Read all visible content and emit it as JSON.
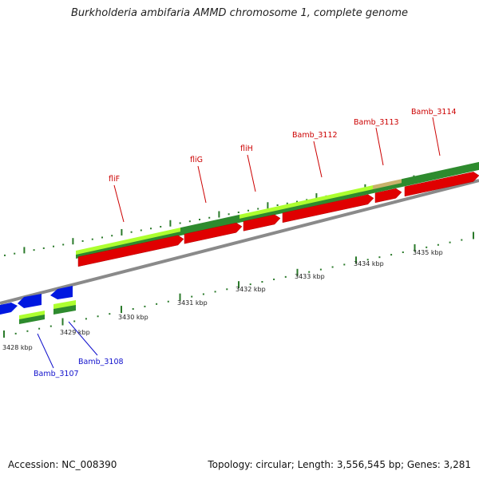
{
  "title": "Burkholderia ambifaria AMMD chromosome 1, complete genome",
  "colors": {
    "forward_cds": "#e00000",
    "reverse_cds": "#0018e0",
    "backbone": "#8a8a8a",
    "gc_dark": "#2e8b2e",
    "gc_light": "#adff2f",
    "tick": "#2a7a2a",
    "label_forward": "#cc0000",
    "label_reverse": "#1010cc"
  },
  "ticks": {
    "labels": [
      "3428 kbp",
      "3429 kbp",
      "3430 kbp",
      "3431 kbp",
      "3432 kbp",
      "3433 kbp",
      "3434 kbp",
      "3435 kbp"
    ]
  },
  "genes": {
    "forward": [
      {
        "name": "fliF"
      },
      {
        "name": "fliG"
      },
      {
        "name": "fliH"
      },
      {
        "name": "Bamb_3112"
      },
      {
        "name": "Bamb_3113"
      },
      {
        "name": "Bamb_3114"
      }
    ],
    "reverse": [
      {
        "name": "Bamb_3107"
      },
      {
        "name": "Bamb_3108"
      }
    ]
  },
  "footer": {
    "accession": "Accession: NC_008390",
    "topology": "Topology: circular; Length: 3,556,545 bp; Genes: 3,281"
  }
}
